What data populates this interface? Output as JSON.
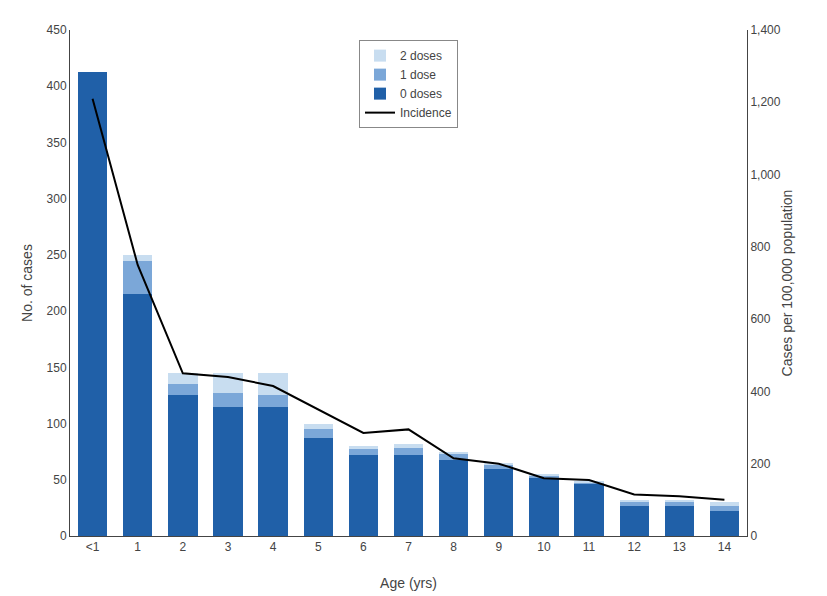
{
  "chart_data": {
    "type": "bar",
    "stacked": true,
    "xlabel": "Age (yrs)",
    "ylabel": "No. of cases",
    "y2label": "Cases per 100,000 population",
    "categories": [
      "<1",
      "1",
      "2",
      "3",
      "4",
      "5",
      "6",
      "7",
      "8",
      "9",
      "10",
      "11",
      "12",
      "13",
      "14"
    ],
    "series": [
      {
        "name": "0 doses",
        "color": "#2060a8",
        "values": [
          413,
          215,
          125,
          115,
          115,
          87,
          72,
          72,
          68,
          60,
          52,
          46,
          27,
          27,
          22
        ]
      },
      {
        "name": "1 dose",
        "color": "#7ba7d8",
        "values": [
          0,
          30,
          10,
          12,
          10,
          8,
          5,
          6,
          5,
          3,
          2,
          2,
          3,
          3,
          5
        ]
      },
      {
        "name": "2 doses",
        "color": "#c8ddf0",
        "values": [
          0,
          5,
          10,
          18,
          20,
          5,
          3,
          4,
          2,
          2,
          1,
          1,
          2,
          2,
          3
        ]
      },
      {
        "name": "Incidence",
        "type": "line",
        "axis": "y2",
        "color": "#000000",
        "values": [
          1210,
          750,
          450,
          440,
          415,
          350,
          285,
          295,
          215,
          200,
          160,
          155,
          115,
          110,
          100
        ]
      }
    ],
    "ylim": [
      0,
      450
    ],
    "yticks": [
      0,
      50,
      100,
      150,
      200,
      250,
      300,
      350,
      400,
      450
    ],
    "y2lim": [
      0,
      1400
    ],
    "y2ticks": [
      0,
      200,
      400,
      600,
      800,
      {
        "value": 1000,
        "label": "1,000"
      },
      {
        "value": 1200,
        "label": "1,200"
      },
      {
        "value": 1400,
        "label": "1,400"
      }
    ],
    "grid": false,
    "legend": "upper center"
  }
}
